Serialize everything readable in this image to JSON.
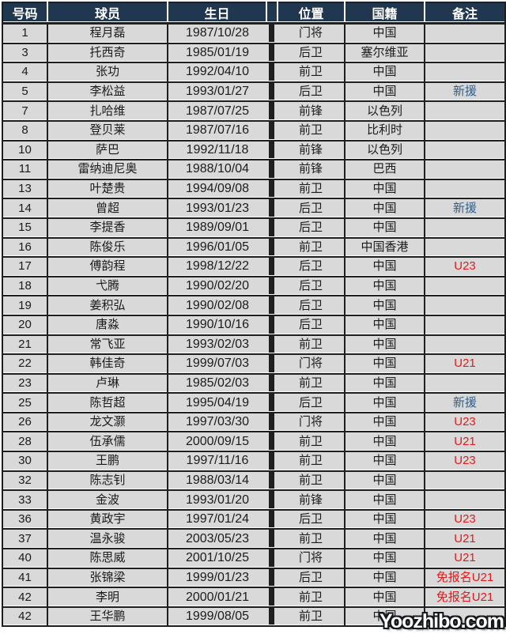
{
  "colors": {
    "header_bg": "#21374f",
    "header_text": "#ffffff",
    "row_bg": "#d9d9d9",
    "border": "#1f1f1f",
    "body_text": "#1b1b1b",
    "note_red": "#e21b1b",
    "note_blue": "#2e5f8f"
  },
  "watermark": "Yoozhibo.com",
  "table": {
    "headers": [
      "号码",
      "球员",
      "生日",
      "位置",
      "国籍",
      "备注"
    ],
    "rows": [
      {
        "number": "1",
        "player": "程月磊",
        "birthday": "1987/10/28",
        "position": "门将",
        "nationality": "中国",
        "note": "",
        "note_style": ""
      },
      {
        "number": "3",
        "player": "托西奇",
        "birthday": "1985/01/19",
        "position": "后卫",
        "nationality": "塞尔维亚",
        "note": "",
        "note_style": ""
      },
      {
        "number": "4",
        "player": "张功",
        "birthday": "1992/04/10",
        "position": "前卫",
        "nationality": "中国",
        "note": "",
        "note_style": ""
      },
      {
        "number": "5",
        "player": "李松益",
        "birthday": "1993/01/27",
        "position": "后卫",
        "nationality": "中国",
        "note": "新援",
        "note_style": "blue"
      },
      {
        "number": "7",
        "player": "扎哈维",
        "birthday": "1987/07/25",
        "position": "前锋",
        "nationality": "以色列",
        "note": "",
        "note_style": ""
      },
      {
        "number": "8",
        "player": "登贝莱",
        "birthday": "1987/07/16",
        "position": "前卫",
        "nationality": "比利时",
        "note": "",
        "note_style": ""
      },
      {
        "number": "10",
        "player": "萨巴",
        "birthday": "1992/11/18",
        "position": "前锋",
        "nationality": "以色列",
        "note": "",
        "note_style": ""
      },
      {
        "number": "11",
        "player": "雷纳迪尼奥",
        "birthday": "1988/10/04",
        "position": "前锋",
        "nationality": "巴西",
        "note": "",
        "note_style": ""
      },
      {
        "number": "13",
        "player": "叶楚贵",
        "birthday": "1994/09/08",
        "position": "前卫",
        "nationality": "中国",
        "note": "",
        "note_style": ""
      },
      {
        "number": "14",
        "player": "曾超",
        "birthday": "1993/01/23",
        "position": "后卫",
        "nationality": "中国",
        "note": "新援",
        "note_style": "blue"
      },
      {
        "number": "15",
        "player": "李提香",
        "birthday": "1989/09/01",
        "position": "后卫",
        "nationality": "中国",
        "note": "",
        "note_style": ""
      },
      {
        "number": "16",
        "player": "陈俊乐",
        "birthday": "1996/01/05",
        "position": "前卫",
        "nationality": "中国香港",
        "note": "",
        "note_style": ""
      },
      {
        "number": "17",
        "player": "傅韵程",
        "birthday": "1998/12/22",
        "position": "后卫",
        "nationality": "中国",
        "note": "U23",
        "note_style": "red"
      },
      {
        "number": "18",
        "player": "弋腾",
        "birthday": "1990/02/20",
        "position": "后卫",
        "nationality": "中国",
        "note": "",
        "note_style": ""
      },
      {
        "number": "19",
        "player": "姜积弘",
        "birthday": "1990/02/08",
        "position": "后卫",
        "nationality": "中国",
        "note": "",
        "note_style": ""
      },
      {
        "number": "20",
        "player": "唐淼",
        "birthday": "1990/10/16",
        "position": "后卫",
        "nationality": "中国",
        "note": "",
        "note_style": ""
      },
      {
        "number": "21",
        "player": "常飞亚",
        "birthday": "1993/02/03",
        "position": "前卫",
        "nationality": "中国",
        "note": "",
        "note_style": ""
      },
      {
        "number": "22",
        "player": "韩佳奇",
        "birthday": "1999/07/03",
        "position": "门将",
        "nationality": "中国",
        "note": "U21",
        "note_style": "red"
      },
      {
        "number": "23",
        "player": "卢琳",
        "birthday": "1985/02/03",
        "position": "前卫",
        "nationality": "中国",
        "note": "",
        "note_style": ""
      },
      {
        "number": "25",
        "player": "陈哲超",
        "birthday": "1995/04/19",
        "position": "后卫",
        "nationality": "中国",
        "note": "新援",
        "note_style": "blue"
      },
      {
        "number": "26",
        "player": "龙文灏",
        "birthday": "1997/03/30",
        "position": "门将",
        "nationality": "中国",
        "note": "U23",
        "note_style": "red"
      },
      {
        "number": "28",
        "player": "伍承儒",
        "birthday": "2000/09/15",
        "position": "前卫",
        "nationality": "中国",
        "note": "U21",
        "note_style": "red"
      },
      {
        "number": "30",
        "player": "王鹏",
        "birthday": "1997/11/16",
        "position": "前卫",
        "nationality": "中国",
        "note": "U23",
        "note_style": "red"
      },
      {
        "number": "32",
        "player": "陈志钊",
        "birthday": "1988/03/14",
        "position": "前卫",
        "nationality": "中国",
        "note": "",
        "note_style": ""
      },
      {
        "number": "33",
        "player": "金波",
        "birthday": "1993/01/20",
        "position": "前锋",
        "nationality": "中国",
        "note": "",
        "note_style": ""
      },
      {
        "number": "36",
        "player": "黄政宇",
        "birthday": "1997/01/24",
        "position": "后卫",
        "nationality": "中国",
        "note": "U23",
        "note_style": "red"
      },
      {
        "number": "37",
        "player": "温永骏",
        "birthday": "2003/05/23",
        "position": "前卫",
        "nationality": "中国",
        "note": "U21",
        "note_style": "red"
      },
      {
        "number": "40",
        "player": "陈思威",
        "birthday": "2001/10/25",
        "position": "门将",
        "nationality": "中国",
        "note": "U21",
        "note_style": "red"
      },
      {
        "number": "41",
        "player": "张锦梁",
        "birthday": "1999/01/23",
        "position": "后卫",
        "nationality": "中国",
        "note": "免报名U21",
        "note_style": "red"
      },
      {
        "number": "42",
        "player": "李明",
        "birthday": "2000/01/21",
        "position": "前卫",
        "nationality": "中国",
        "note": "免报名U21",
        "note_style": "red"
      },
      {
        "number": "42",
        "player": "王华鹏",
        "birthday": "1999/08/05",
        "position": "前卫",
        "nationality": "中国",
        "note": "",
        "note_style": ""
      }
    ]
  }
}
